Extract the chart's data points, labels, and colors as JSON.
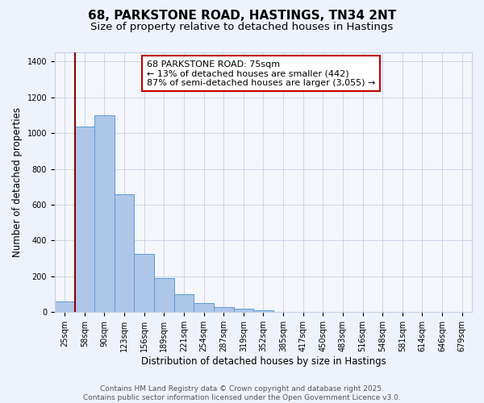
{
  "title": "68, PARKSTONE ROAD, HASTINGS, TN34 2NT",
  "subtitle": "Size of property relative to detached houses in Hastings",
  "xlabel": "Distribution of detached houses by size in Hastings",
  "ylabel": "Number of detached properties",
  "categories": [
    "25sqm",
    "58sqm",
    "90sqm",
    "123sqm",
    "156sqm",
    "189sqm",
    "221sqm",
    "254sqm",
    "287sqm",
    "319sqm",
    "352sqm",
    "385sqm",
    "417sqm",
    "450sqm",
    "483sqm",
    "516sqm",
    "548sqm",
    "581sqm",
    "614sqm",
    "646sqm",
    "679sqm"
  ],
  "values": [
    60,
    1035,
    1100,
    660,
    325,
    190,
    100,
    50,
    30,
    20,
    10,
    0,
    0,
    0,
    0,
    0,
    0,
    0,
    0,
    0,
    0
  ],
  "bar_color": "#aec6e8",
  "bar_edge_color": "#5b9bd5",
  "vline_x": 0.5,
  "vline_color": "#8b0000",
  "annotation_title": "68 PARKSTONE ROAD: 75sqm",
  "annotation_line1": "← 13% of detached houses are smaller (442)",
  "annotation_line2": "87% of semi-detached houses are larger (3,055) →",
  "annotation_box_edge": "#c00000",
  "footer_line1": "Contains HM Land Registry data © Crown copyright and database right 2025.",
  "footer_line2": "Contains public sector information licensed under the Open Government Licence v3.0.",
  "bg_color": "#eef2fa",
  "plot_bg_color": "#f4f6fb",
  "grid_color": "#c8d0e8",
  "ylim": [
    0,
    1450
  ],
  "title_fontsize": 11,
  "subtitle_fontsize": 9.5,
  "axis_label_fontsize": 8.5,
  "tick_fontsize": 7,
  "annotation_fontsize": 8,
  "footer_fontsize": 6.5
}
